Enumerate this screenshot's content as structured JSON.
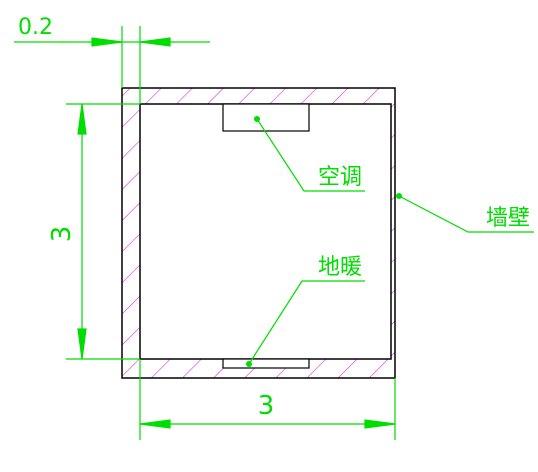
{
  "colors": {
    "wall": "#000000",
    "dimension": "#00dd00",
    "leader": "#00dd00",
    "hatch": "#dd33dd",
    "text": "#00dd00"
  },
  "dimensions": {
    "wall_thickness": "0.2",
    "height": "3",
    "width": "3"
  },
  "labels": {
    "air_conditioner": "空调",
    "wall": "墙壁",
    "floor_heating": "地暖"
  }
}
